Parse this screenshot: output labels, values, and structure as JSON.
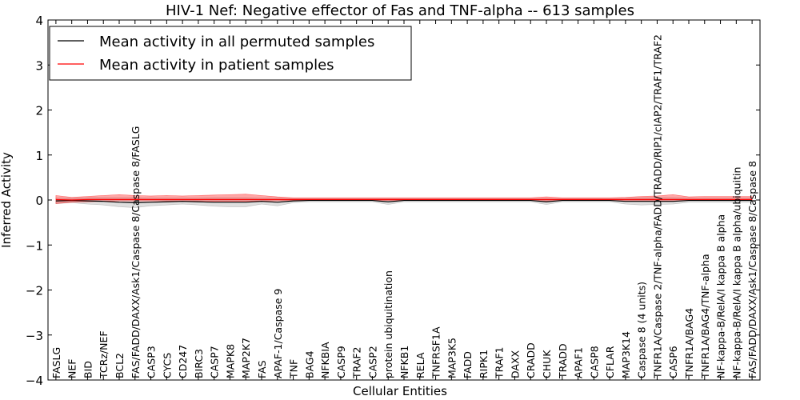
{
  "chart_data": {
    "type": "line",
    "title": "HIV-1 Nef: Negative effector of Fas and TNF-alpha -- 613 samples",
    "xlabel": "Cellular Entities",
    "ylabel": "Inferred Activity",
    "ylim": [
      -4,
      4
    ],
    "yticks": [
      4,
      3,
      2,
      1,
      0,
      -1,
      -2,
      -3,
      -4
    ],
    "ytick_labels": [
      "4",
      "3",
      "2",
      "1",
      "0",
      "−1",
      "−2",
      "−3",
      "−4"
    ],
    "legend_position": "top-left",
    "categories": [
      "FASLG",
      "NEF",
      "BID",
      "TCRz/NEF",
      "BCL2",
      "FAS/FADD/DAXX/Ask1/Caspase 8/Caspase 8/FASLG",
      "CASP3",
      "CYCS",
      "CD247",
      "BIRC3",
      "CASP7",
      "MAPK8",
      "MAP2K7",
      "FAS",
      "APAF-1/Caspase 9",
      "TNF",
      "BAG4",
      "NFKBIA",
      "CASP9",
      "TRAF2",
      "CASP2",
      "protein ubiquitination",
      "NFKB1",
      "RELA",
      "TNFRSF1A",
      "MAP3K5",
      "FADD",
      "RIPK1",
      "TRAF1",
      "DAXX",
      "CRADD",
      "CHUK",
      "TRADD",
      "APAF1",
      "CASP8",
      "CFLAR",
      "MAP3K14",
      "Caspase 8 (4 units)",
      "TNFR1A/Caspase 2/TNF-alpha/FADD/TRADD/RIP1/cIAP2/TRAF1/TRAF2",
      "CASP6",
      "TNFR1A/BAG4",
      "TNFR1A/BAG4/TNF-alpha",
      "NF-kappa-B/RelA/I kappa B alpha",
      "NF-kappa-B/RelA/I kappa B alpha/ubiquitin",
      "FAS/FADD/DAXX/Ask1/Caspase 8/Caspase 8"
    ],
    "series": [
      {
        "name": "Mean activity in all permuted samples",
        "color": "#000000",
        "values": [
          -0.02,
          -0.01,
          -0.02,
          -0.03,
          -0.05,
          -0.06,
          -0.05,
          -0.04,
          -0.03,
          -0.04,
          -0.05,
          -0.05,
          -0.05,
          -0.03,
          -0.05,
          -0.02,
          -0.01,
          -0.01,
          -0.01,
          -0.01,
          -0.01,
          -0.04,
          -0.01,
          -0.01,
          -0.01,
          -0.01,
          -0.01,
          -0.01,
          -0.01,
          -0.01,
          -0.01,
          -0.04,
          -0.01,
          -0.01,
          -0.01,
          -0.01,
          -0.03,
          -0.03,
          -0.03,
          -0.03,
          -0.01,
          -0.01,
          -0.01,
          -0.01,
          -0.01
        ],
        "band_low": [
          -0.08,
          -0.06,
          -0.09,
          -0.11,
          -0.15,
          -0.17,
          -0.13,
          -0.11,
          -0.09,
          -0.11,
          -0.14,
          -0.15,
          -0.15,
          -0.09,
          -0.13,
          -0.06,
          -0.04,
          -0.04,
          -0.04,
          -0.04,
          -0.04,
          -0.1,
          -0.04,
          -0.04,
          -0.04,
          -0.04,
          -0.04,
          -0.04,
          -0.04,
          -0.04,
          -0.04,
          -0.1,
          -0.04,
          -0.04,
          -0.04,
          -0.04,
          -0.09,
          -0.11,
          -0.1,
          -0.09,
          -0.05,
          -0.05,
          -0.05,
          -0.05,
          -0.05
        ],
        "band_high": [
          0.04,
          0.04,
          0.05,
          0.05,
          0.05,
          0.05,
          0.04,
          0.04,
          0.04,
          0.04,
          0.05,
          0.05,
          0.05,
          0.04,
          0.04,
          0.03,
          0.03,
          0.03,
          0.03,
          0.03,
          0.03,
          0.03,
          0.03,
          0.03,
          0.03,
          0.03,
          0.03,
          0.03,
          0.03,
          0.03,
          0.03,
          0.03,
          0.03,
          0.03,
          0.03,
          0.03,
          0.04,
          0.05,
          0.05,
          0.05,
          0.04,
          0.04,
          0.04,
          0.04,
          0.04
        ]
      },
      {
        "name": "Mean activity in patient samples",
        "color": "#ff0000",
        "values": [
          0.01,
          0.0,
          0.01,
          0.01,
          0.01,
          0.01,
          0.01,
          0.01,
          0.01,
          0.01,
          0.01,
          0.01,
          0.01,
          0.01,
          0.01,
          0.01,
          0.01,
          0.01,
          0.01,
          0.01,
          0.01,
          0.01,
          0.01,
          0.01,
          0.01,
          0.01,
          0.01,
          0.01,
          0.01,
          0.01,
          0.01,
          0.01,
          0.01,
          0.01,
          0.01,
          0.01,
          0.01,
          0.01,
          0.01,
          0.01,
          0.01,
          0.01,
          0.01,
          0.01,
          0.01
        ],
        "band_low": [
          -0.08,
          -0.05,
          -0.04,
          -0.03,
          -0.02,
          -0.02,
          -0.02,
          -0.02,
          -0.02,
          -0.02,
          -0.03,
          -0.03,
          -0.03,
          -0.02,
          -0.02,
          -0.01,
          -0.01,
          -0.01,
          -0.01,
          -0.01,
          -0.01,
          -0.01,
          -0.01,
          -0.01,
          -0.01,
          -0.01,
          -0.01,
          -0.01,
          -0.01,
          -0.01,
          -0.01,
          -0.02,
          -0.01,
          -0.01,
          -0.01,
          -0.01,
          -0.02,
          -0.02,
          -0.02,
          -0.03,
          -0.01,
          -0.01,
          -0.01,
          -0.01,
          -0.01
        ],
        "band_high": [
          0.1,
          0.06,
          0.08,
          0.1,
          0.12,
          0.1,
          0.09,
          0.1,
          0.09,
          0.1,
          0.11,
          0.12,
          0.13,
          0.1,
          0.07,
          0.05,
          0.05,
          0.05,
          0.05,
          0.05,
          0.05,
          0.05,
          0.05,
          0.05,
          0.05,
          0.05,
          0.05,
          0.05,
          0.05,
          0.05,
          0.05,
          0.07,
          0.05,
          0.05,
          0.05,
          0.05,
          0.06,
          0.08,
          0.09,
          0.12,
          0.07,
          0.08,
          0.08,
          0.08,
          0.08
        ]
      }
    ]
  }
}
